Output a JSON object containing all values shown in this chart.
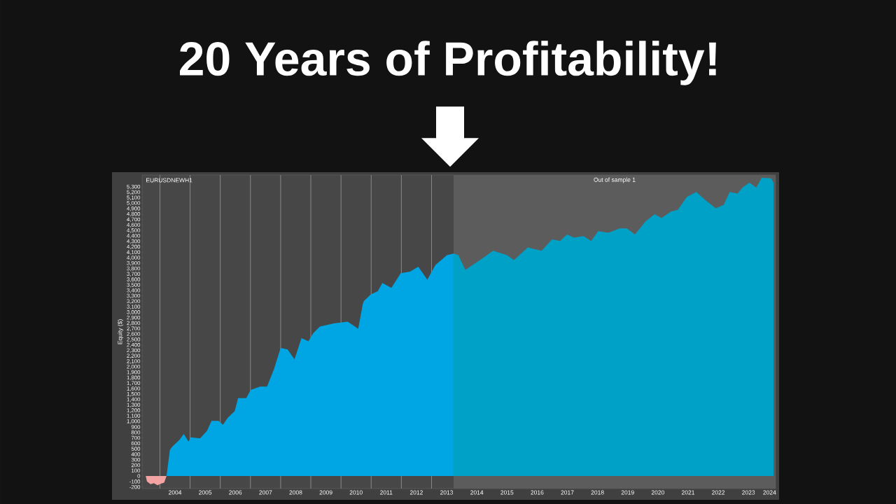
{
  "chart_data": {
    "type": "area",
    "title": "20 Years of Profitability!",
    "ylabel": "Equity ($)",
    "annotations": [
      "EURUSDNEWH1"
    ],
    "series": [
      {
        "color": "#f4a3a3",
        "x": [
          2003.53,
          2003.57,
          2003.69,
          2003.8,
          2003.92,
          2004.03,
          2004.14,
          2004.22
        ],
        "values": [
          0,
          -100,
          -150,
          -130,
          -170,
          -140,
          -120,
          0
        ]
      },
      {
        "color": "#00a6e3",
        "x": [
          2004.22,
          2004.33,
          2004.41,
          2004.64,
          2004.79,
          2004.95,
          2005.02,
          2005.33,
          2005.56,
          2005.71,
          2005.94,
          2006.09,
          2006.25,
          2006.48,
          2006.59,
          2006.86,
          2007.01,
          2007.32,
          2007.55,
          2007.78,
          2008.0,
          2008.23,
          2008.46,
          2008.69,
          2008.92,
          2009.08,
          2009.3,
          2009.76,
          2010.22,
          2010.57,
          2010.72,
          2010.76,
          2010.99,
          2011.22,
          2011.37,
          2011.67,
          2011.98,
          2012.29,
          2012.56,
          2012.86,
          2013.13,
          2013.51,
          2013.73
        ],
        "values": [
          0,
          480,
          540,
          660,
          770,
          630,
          710,
          690,
          830,
          1010,
          1010,
          940,
          1070,
          1190,
          1430,
          1430,
          1580,
          1640,
          1640,
          1960,
          2350,
          2320,
          2140,
          2530,
          2470,
          2620,
          2740,
          2800,
          2830,
          2700,
          3150,
          3210,
          3330,
          3390,
          3540,
          3450,
          3720,
          3750,
          3840,
          3600,
          3870,
          4050,
          4080
        ]
      },
      {
        "color": "#00a1c6",
        "x": [
          2013.73,
          2013.89,
          2014.12,
          2014.58,
          2015.04,
          2015.5,
          2015.73,
          2016.19,
          2016.65,
          2016.99,
          2017.26,
          2017.49,
          2017.72,
          2018.03,
          2018.29,
          2018.52,
          2018.86,
          2019.24,
          2019.47,
          2019.74,
          2020.09,
          2020.39,
          2020.62,
          2020.93,
          2021.16,
          2021.46,
          2021.77,
          2022.07,
          2022.42,
          2022.68,
          2022.88,
          2023.14,
          2023.3,
          2023.53,
          2023.76,
          2023.94,
          2024.25,
          2024.33
        ],
        "values": [
          4080,
          4050,
          3780,
          3950,
          4130,
          4050,
          3960,
          4190,
          4130,
          4340,
          4310,
          4430,
          4370,
          4400,
          4310,
          4490,
          4460,
          4540,
          4540,
          4430,
          4670,
          4800,
          4730,
          4850,
          4880,
          5120,
          5210,
          5060,
          4910,
          4970,
          5210,
          5180,
          5290,
          5380,
          5290,
          5470,
          5460,
          5380
        ]
      }
    ],
    "bands": [
      {
        "axis": "x",
        "from": 2013.73,
        "to": 2024.4,
        "label": "Out of sample 1",
        "color": "#5c5c5c"
      }
    ],
    "xlim": [
      2003.41,
      2024.4
    ],
    "ylim": [
      -230,
      5520
    ],
    "grid": "x",
    "xticks": [
      {
        "value": 2004,
        "label": null
      },
      {
        "value": 2005,
        "label": null
      },
      {
        "value": 2006,
        "label": null
      },
      {
        "value": 2007,
        "label": null
      },
      {
        "value": 2008,
        "label": null
      },
      {
        "value": 2009,
        "label": null
      },
      {
        "value": 2010,
        "label": null
      },
      {
        "value": 2011,
        "label": null
      },
      {
        "value": 2012,
        "label": null
      },
      {
        "value": 2013,
        "label": null
      },
      {
        "value": 2014,
        "label": null
      },
      {
        "value": 2015,
        "label": null
      },
      {
        "value": 2016,
        "label": null
      },
      {
        "value": 2017,
        "label": null
      },
      {
        "value": 2018,
        "label": null
      },
      {
        "value": 2019,
        "label": null
      },
      {
        "value": 2020,
        "label": null
      },
      {
        "value": 2021,
        "label": null
      },
      {
        "value": 2022,
        "label": null
      },
      {
        "value": 2023,
        "label": null
      },
      {
        "value": 2024,
        "label": null
      },
      {
        "value": 2004.5,
        "label": "2004"
      },
      {
        "value": 2005.5,
        "label": "2005"
      },
      {
        "value": 2006.5,
        "label": "2006"
      },
      {
        "value": 2007.5,
        "label": "2007"
      },
      {
        "value": 2008.5,
        "label": "2008"
      },
      {
        "value": 2009.5,
        "label": "2009"
      },
      {
        "value": 2010.5,
        "label": "2010"
      },
      {
        "value": 2011.5,
        "label": "2011"
      },
      {
        "value": 2012.5,
        "label": "2012"
      },
      {
        "value": 2013.5,
        "label": "2013"
      },
      {
        "value": 2014.5,
        "label": "2014"
      },
      {
        "value": 2015.5,
        "label": "2015"
      },
      {
        "value": 2016.5,
        "label": "2016"
      },
      {
        "value": 2017.5,
        "label": "2017"
      },
      {
        "value": 2018.5,
        "label": "2018"
      },
      {
        "value": 2019.5,
        "label": "2019"
      },
      {
        "value": 2020.5,
        "label": "2020"
      },
      {
        "value": 2021.5,
        "label": "2021"
      },
      {
        "value": 2022.5,
        "label": "2022"
      },
      {
        "value": 2023.5,
        "label": "2023"
      },
      {
        "value": 2024.2,
        "label": "2024"
      }
    ],
    "yticks": [
      {
        "value": -200,
        "label": "-200"
      },
      -100,
      0,
      100,
      200,
      300,
      400,
      500,
      600,
      700,
      800,
      900,
      {
        "value": 1000,
        "label": "1,000"
      },
      {
        "value": 1100,
        "label": "1,100"
      },
      {
        "value": 1200,
        "label": "1,200"
      },
      {
        "value": 1300,
        "label": "1,300"
      },
      {
        "value": 1400,
        "label": "1,400"
      },
      {
        "value": 1500,
        "label": "1,500"
      },
      {
        "value": 1600,
        "label": "1,600"
      },
      {
        "value": 1700,
        "label": "1,700"
      },
      {
        "value": 1800,
        "label": "1,800"
      },
      {
        "value": 1900,
        "label": "1,900"
      },
      {
        "value": 2000,
        "label": "2,000"
      },
      {
        "value": 2100,
        "label": "2,100"
      },
      {
        "value": 2200,
        "label": "2,200"
      },
      {
        "value": 2300,
        "label": "2,300"
      },
      {
        "value": 2400,
        "label": "2,400"
      },
      {
        "value": 2500,
        "label": "2,500"
      },
      {
        "value": 2600,
        "label": "2,600"
      },
      {
        "value": 2700,
        "label": "2,700"
      },
      {
        "value": 2800,
        "label": "2,800"
      },
      {
        "value": 2900,
        "label": "2,900"
      },
      {
        "value": 3000,
        "label": "3,000"
      },
      {
        "value": 3100,
        "label": "3,100"
      },
      {
        "value": 3200,
        "label": "3,200"
      },
      {
        "value": 3300,
        "label": "3,300"
      },
      {
        "value": 3400,
        "label": "3,400"
      },
      {
        "value": 3500,
        "label": "3,500"
      },
      {
        "value": 3600,
        "label": "3,600"
      },
      {
        "value": 3700,
        "label": "3,700"
      },
      {
        "value": 3800,
        "label": "3,800"
      },
      {
        "value": 3900,
        "label": "3,900"
      },
      {
        "value": 4000,
        "label": "4,000"
      },
      {
        "value": 4100,
        "label": "4,100"
      },
      {
        "value": 4200,
        "label": "4,200"
      },
      {
        "value": 4300,
        "label": "4,300"
      },
      {
        "value": 4400,
        "label": "4,400"
      },
      {
        "value": 4500,
        "label": "4,500"
      },
      {
        "value": 4600,
        "label": "4,600"
      },
      {
        "value": 4700,
        "label": "4,700"
      },
      {
        "value": 4800,
        "label": "4,800"
      },
      {
        "value": 4900,
        "label": "4,900"
      },
      {
        "value": 5000,
        "label": "5,000"
      },
      {
        "value": 5100,
        "label": "5,100"
      },
      {
        "value": 5200,
        "label": "5,200"
      },
      {
        "value": 5300,
        "label": "5,300"
      }
    ]
  }
}
